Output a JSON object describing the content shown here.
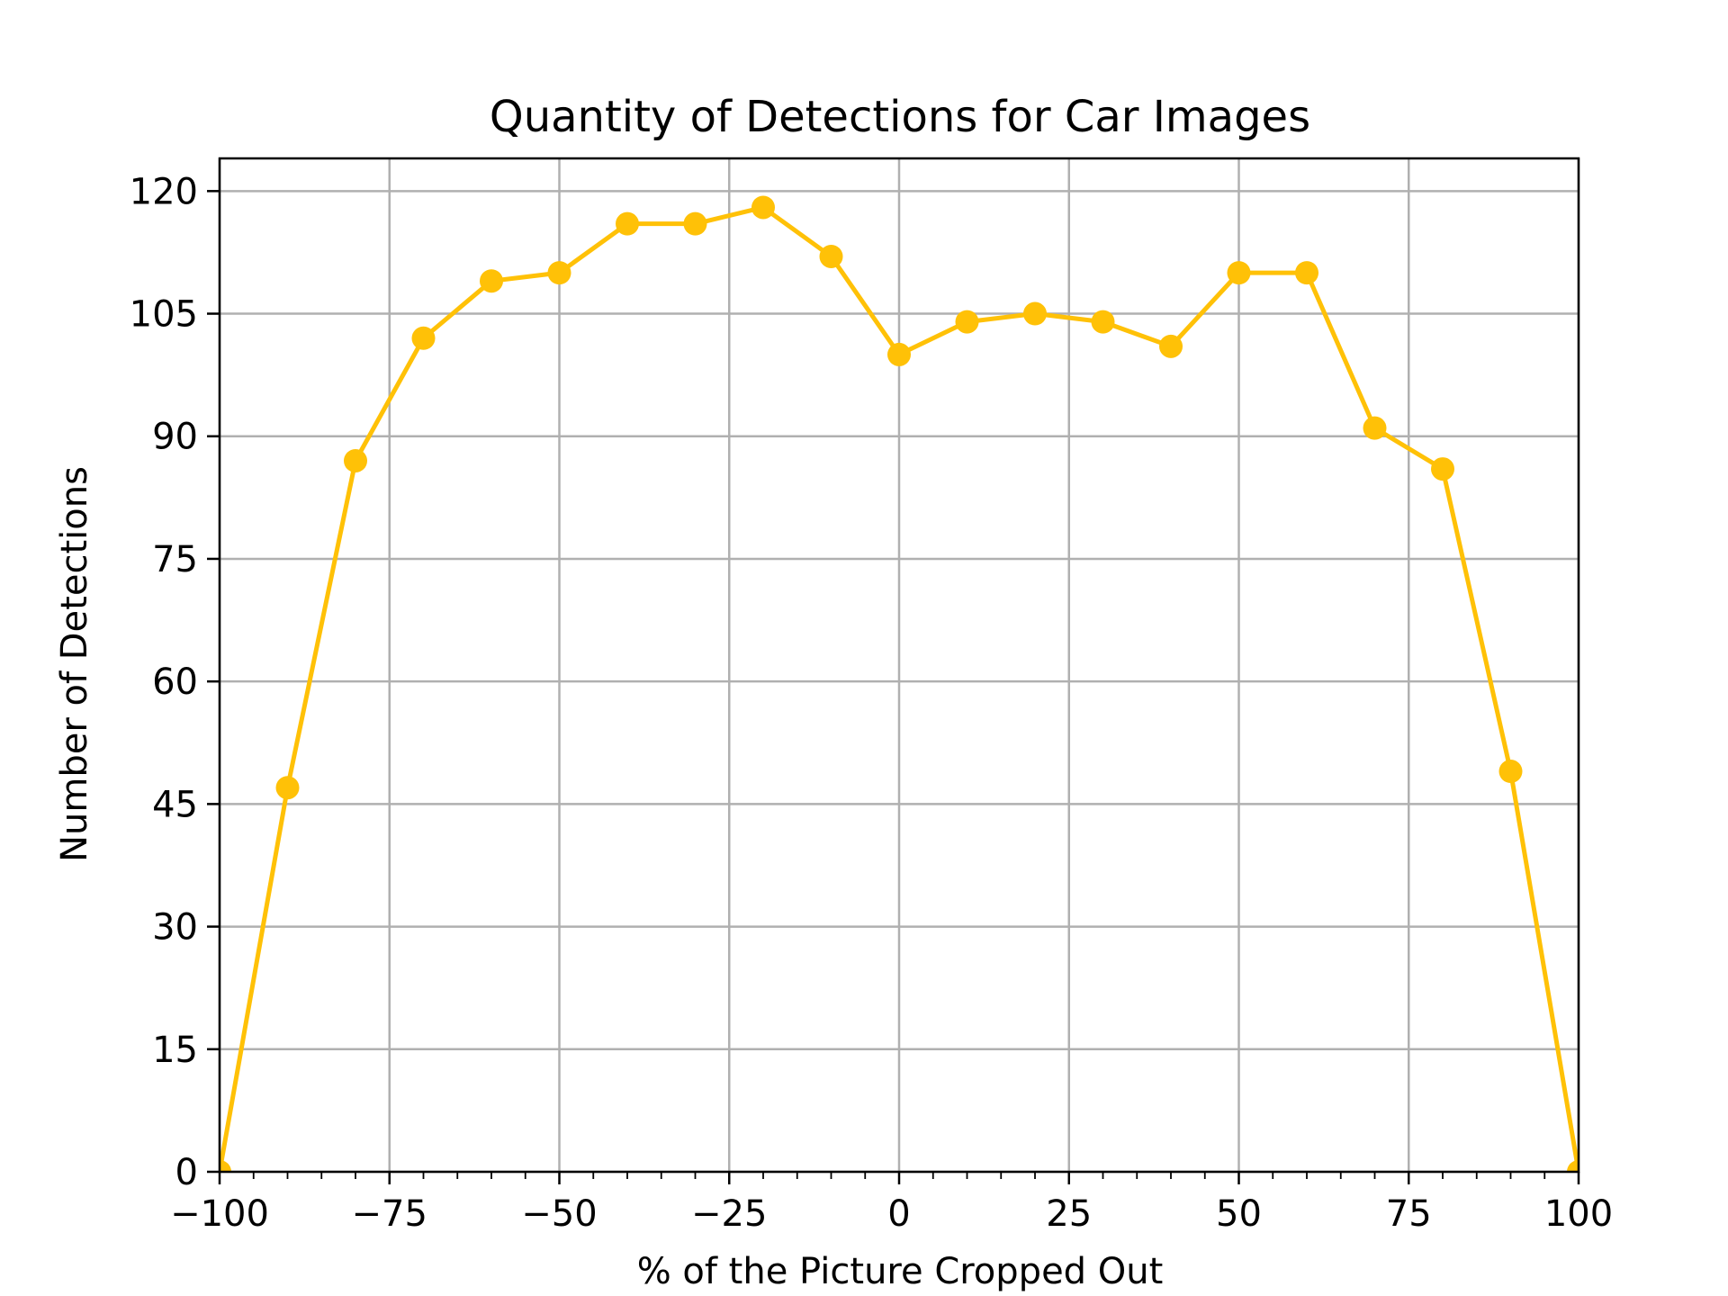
{
  "chart_data": {
    "type": "line",
    "title": "Quantity of Detections for Car Images",
    "xlabel": "% of the Picture Cropped Out",
    "ylabel": "Number of Detections",
    "xlim": [
      -100,
      100
    ],
    "ylim": [
      0,
      124
    ],
    "x_ticks": [
      -100,
      -75,
      -50,
      -25,
      0,
      25,
      50,
      75,
      100
    ],
    "x_tick_labels": [
      "−100",
      "−75",
      "−50",
      "−25",
      "0",
      "25",
      "50",
      "75",
      "100"
    ],
    "x_minor_ticks": [
      -95,
      -90,
      -85,
      -80,
      -70,
      -65,
      -60,
      -55,
      -45,
      -40,
      -35,
      -30,
      -20,
      -15,
      -10,
      -5,
      5,
      10,
      15,
      20,
      30,
      35,
      40,
      45,
      55,
      60,
      65,
      70,
      80,
      85,
      90,
      95
    ],
    "y_ticks": [
      0,
      15,
      30,
      45,
      60,
      75,
      90,
      105,
      120
    ],
    "y_tick_labels": [
      "0",
      "15",
      "30",
      "45",
      "60",
      "75",
      "90",
      "105",
      "120"
    ],
    "grid": true,
    "line_color": "#ffc107",
    "series": [
      {
        "x": [
          -100,
          -90,
          -80,
          -70,
          -60,
          -50,
          -40,
          -30,
          -20,
          -10,
          0,
          10,
          20,
          30,
          40,
          50,
          60,
          70,
          80,
          90,
          100
        ],
        "y": [
          0,
          47,
          87,
          102,
          109,
          110,
          116,
          116,
          118,
          112,
          100,
          104,
          105,
          104,
          101,
          110,
          110,
          91,
          86,
          49,
          0
        ]
      }
    ]
  }
}
